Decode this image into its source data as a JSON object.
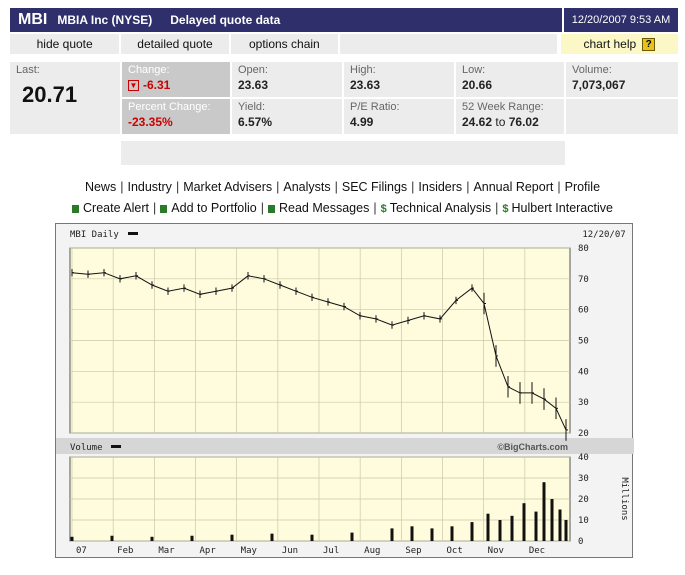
{
  "header": {
    "symbol": "MBI",
    "company": "MBIA Inc (NYSE)",
    "delay": "Delayed quote data",
    "datetime": "12/20/2007 9:53 AM"
  },
  "tabs": {
    "hide_quote": "hide quote",
    "detailed_quote": "detailed quote",
    "options_chain": "options chain",
    "chart_help": "chart help",
    "help_icon": "?"
  },
  "quote": {
    "last_label": "Last:",
    "last": "20.71",
    "change_label": "Change:",
    "change": "-6.31",
    "pct_label": "Percent Change:",
    "pct": "-23.35%",
    "open_label": "Open:",
    "open": "23.63",
    "yield_label": "Yield:",
    "yield": "6.57%",
    "high_label": "High:",
    "high": "23.63",
    "pe_label": "P/E Ratio:",
    "pe": "4.99",
    "low_label": "Low:",
    "low": "20.66",
    "range_label": "52 Week Range:",
    "range_low": "24.62",
    "range_to": "to",
    "range_high": "76.02",
    "volume_label": "Volume:",
    "volume": "7,073,067",
    "colors": {
      "down": "#cc0000",
      "header_bg": "#2f2f6b"
    }
  },
  "links": {
    "row1": [
      "News",
      "Industry",
      "Market Advisers",
      "Analysts",
      "SEC Filings",
      "Insiders",
      "Annual Report",
      "Profile"
    ],
    "row2": [
      "Create Alert",
      "Add to Portfolio",
      "Read Messages",
      "Technical Analysis",
      "Hulbert Interactive"
    ]
  },
  "chart_data": [
    {
      "type": "line",
      "title": "MBI Daily",
      "date_label": "12/20/07",
      "ylim": [
        20,
        80
      ],
      "yticks": [
        20,
        30,
        40,
        50,
        60,
        70,
        80
      ],
      "months": [
        "07",
        "Feb",
        "Mar",
        "Apr",
        "May",
        "Jun",
        "Jul",
        "Aug",
        "Sep",
        "Oct",
        "Nov",
        "Dec"
      ],
      "x_range": [
        0,
        247
      ],
      "x": [
        0,
        8,
        16,
        24,
        32,
        40,
        48,
        56,
        64,
        72,
        80,
        88,
        96,
        104,
        112,
        120,
        128,
        136,
        144,
        152,
        160,
        168,
        176,
        184,
        192,
        200,
        206,
        212,
        218,
        224,
        230,
        236,
        242,
        247
      ],
      "values": [
        72,
        71.5,
        72,
        70,
        71,
        68,
        66,
        67,
        65,
        66,
        67,
        71,
        70,
        68,
        66,
        64,
        62.5,
        61,
        58,
        57,
        55,
        56.5,
        58,
        57,
        63,
        67,
        62,
        45,
        35,
        33,
        33,
        31,
        28,
        21
      ],
      "grid": true
    },
    {
      "type": "bar",
      "title": "Volume",
      "credit": "©BigCharts.com",
      "ylabel": "Millions",
      "ylim": [
        0,
        40
      ],
      "yticks": [
        0,
        10,
        20,
        30,
        40
      ],
      "x": [
        0,
        20,
        40,
        60,
        80,
        100,
        120,
        140,
        160,
        170,
        180,
        190,
        200,
        208,
        214,
        220,
        226,
        232,
        236,
        240,
        244,
        247
      ],
      "values": [
        2,
        2.5,
        2,
        2.5,
        3,
        3.5,
        3,
        4,
        6,
        7,
        6,
        7,
        9,
        13,
        10,
        12,
        18,
        14,
        28,
        20,
        15,
        10
      ],
      "grid": true
    }
  ]
}
